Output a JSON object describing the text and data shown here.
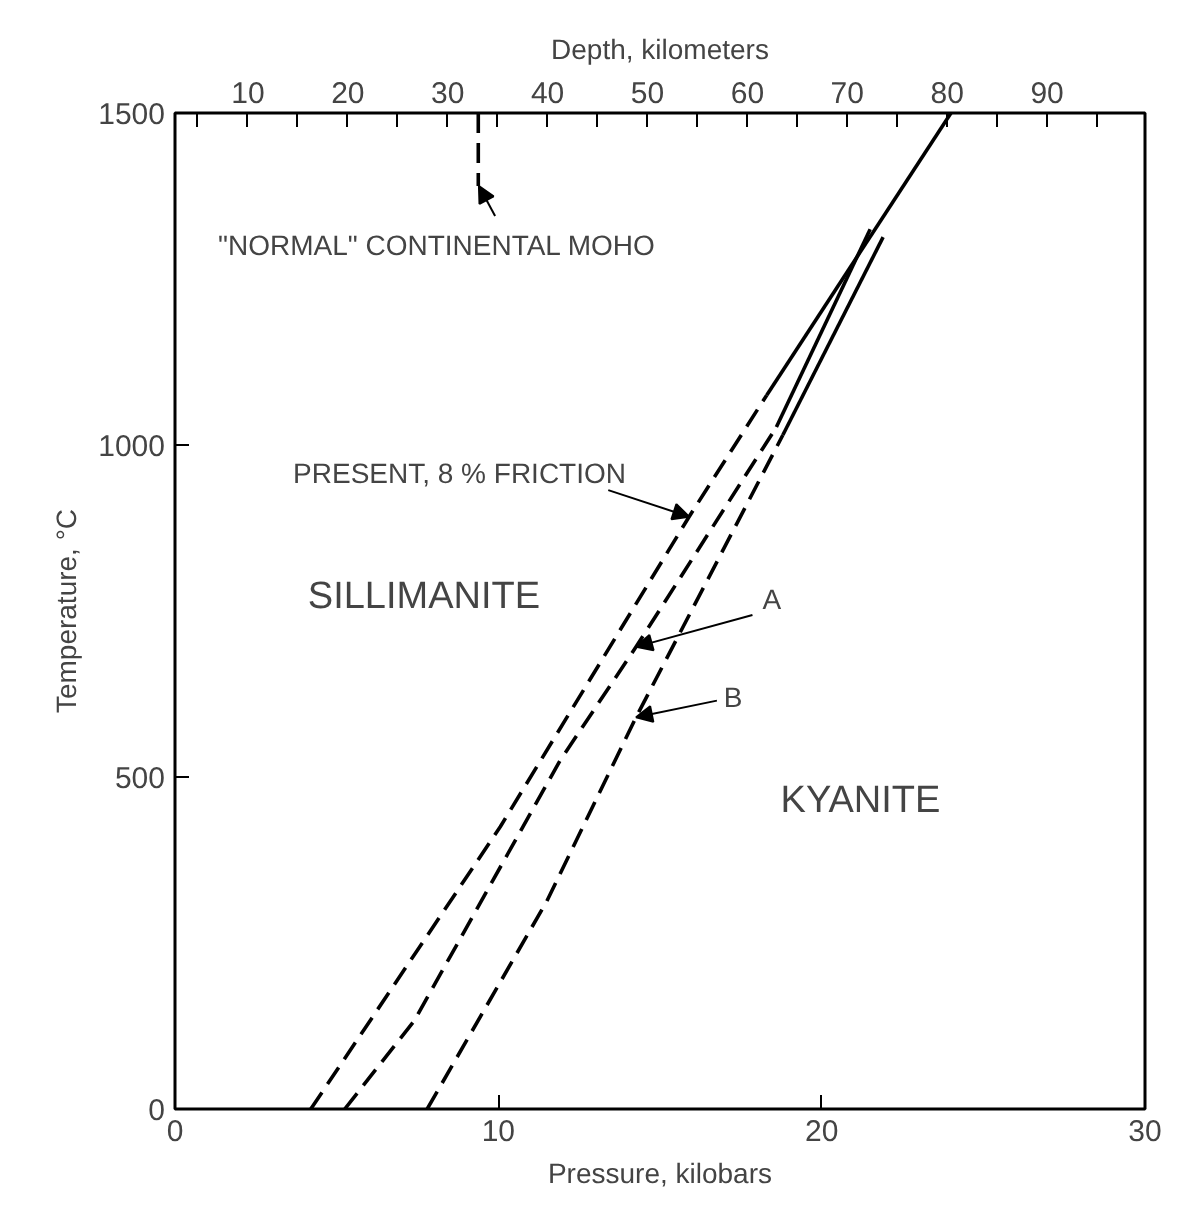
{
  "chart_data": {
    "type": "line",
    "xlabel": "Pressure, kilobars",
    "ylabel": "Temperature, °C",
    "x2label": "Depth, kilometers",
    "xlim": [
      0,
      30
    ],
    "xticks": [
      0,
      10,
      20,
      30
    ],
    "ylim": [
      0,
      1500
    ],
    "yticks": [
      0,
      500,
      1000,
      1500
    ],
    "x2lim": [
      2.7,
      99.8
    ],
    "x2ticks": [
      {
        "value": 5,
        "label": null
      },
      10,
      {
        "value": 15,
        "label": null
      },
      20,
      {
        "value": 25,
        "label": null
      },
      30,
      {
        "value": 35,
        "label": null
      },
      40,
      {
        "value": 45,
        "label": null
      },
      50,
      {
        "value": 55,
        "label": null
      },
      60,
      {
        "value": 65,
        "label": null
      },
      70,
      {
        "value": 75,
        "label": null
      },
      80,
      {
        "value": 85,
        "label": null
      },
      90,
      {
        "value": 95,
        "label": null
      }
    ],
    "grid": false,
    "marker": "none",
    "series": [
      {
        "color": "#000000",
        "line_style": "dashed",
        "x": [
          4.2,
          10.06,
          15.9,
          18.3
        ],
        "values": [
          0,
          425,
          892,
          1075
        ]
      },
      {
        "color": "#000000",
        "line_style": "solid",
        "x": [
          18.3,
          24.0
        ],
        "values": [
          1075,
          1500
        ]
      },
      {
        "color": "#000000",
        "line_style": "dashed",
        "x": [
          5.25,
          7.4,
          11.9,
          14.26,
          18.6
        ],
        "values": [
          0,
          133,
          524,
          696,
          1027
        ]
      },
      {
        "color": "#000000",
        "line_style": "solid",
        "x": [
          18.6,
          21.5
        ],
        "values": [
          1027,
          1325
        ]
      },
      {
        "color": "#000000",
        "line_style": "dashed",
        "x": [
          7.8,
          11.5,
          14.26,
          18.8
        ],
        "values": [
          0,
          313,
          590,
          1015
        ]
      },
      {
        "color": "#000000",
        "line_style": "solid",
        "x": [
          18.8,
          21.9
        ],
        "values": [
          1015,
          1313
        ]
      },
      {
        "color": "#000000",
        "line_style": "dashed",
        "x": [
          9.38,
          9.38
        ],
        "values": [
          1500,
          1390
        ]
      }
    ],
    "annotations": [
      {
        "text": "\"NORMAL\" CONTINENTAL MOHO",
        "x": 9.4,
        "y": 1390
      },
      {
        "text": "PRESENT, 8 % FRICTION",
        "x": 15.9,
        "y": 892
      },
      {
        "text": "A",
        "x": 14.26,
        "y": 696
      },
      {
        "text": "B",
        "x": 14.26,
        "y": 590
      },
      "SILLIMANITE",
      "KYANITE"
    ]
  }
}
